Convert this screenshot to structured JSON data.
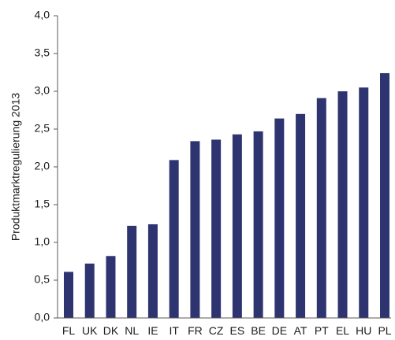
{
  "chart_data": {
    "type": "bar",
    "title": "",
    "xlabel": "",
    "ylabel": "Produktmarktregulierung 2013",
    "ylim": [
      0,
      4.0
    ],
    "yticks": [
      "0,0",
      "0,5",
      "1,0",
      "1,5",
      "2,0",
      "2,5",
      "3,0",
      "3,5",
      "4,0"
    ],
    "categories": [
      "FL",
      "UK",
      "DK",
      "NL",
      "IE",
      "IT",
      "FR",
      "CZ",
      "ES",
      "BE",
      "DE",
      "AT",
      "PT",
      "EL",
      "HU",
      "PL"
    ],
    "values": [
      0.61,
      0.72,
      0.82,
      1.22,
      1.24,
      2.09,
      2.34,
      2.36,
      2.43,
      2.47,
      2.64,
      2.7,
      2.91,
      3.0,
      3.05,
      3.24
    ],
    "grid": false,
    "legend": "none",
    "colors": {
      "bar": "#2e3470",
      "axis": "#595959",
      "text": "#1a1a1a"
    }
  }
}
